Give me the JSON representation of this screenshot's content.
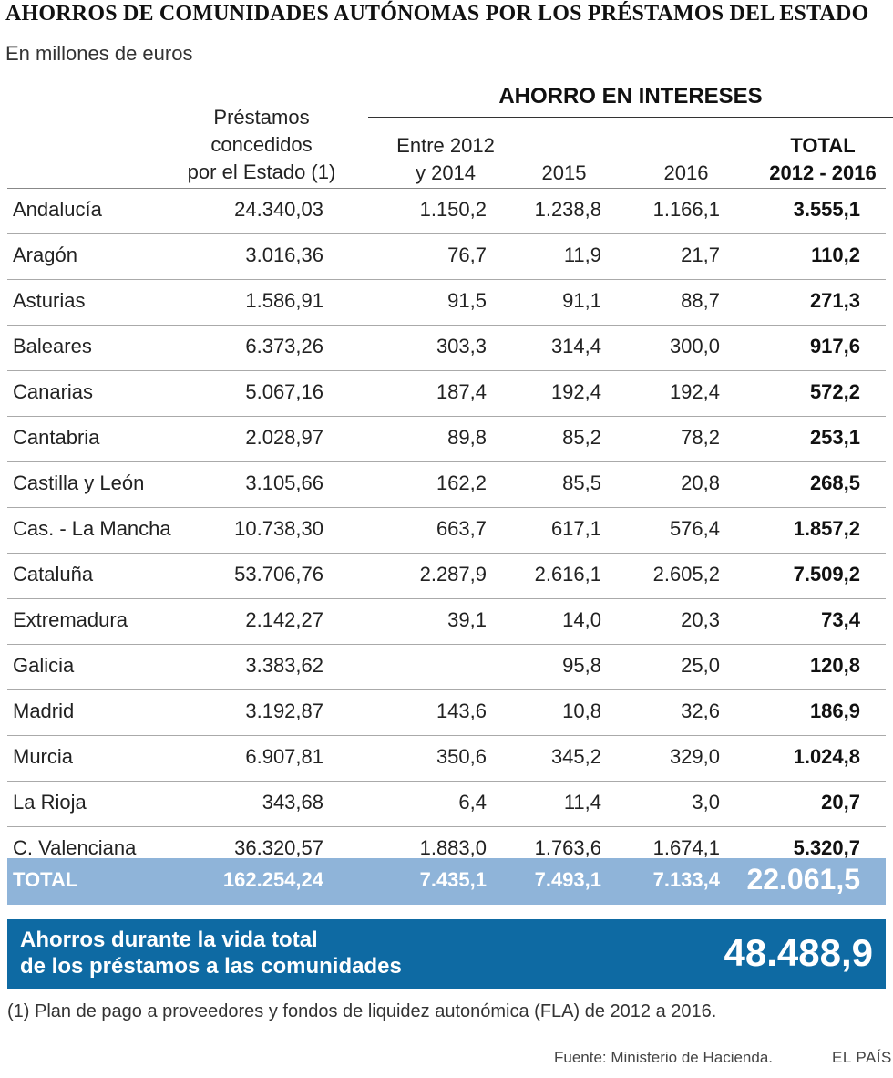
{
  "title": "AHORROS DE COMUNIDADES AUTÓNOMAS POR LOS PRÉSTAMOS DEL ESTADO",
  "subtitle": "En millones de euros",
  "header": {
    "group": "AHORRO EN INTERESES",
    "prestamos": [
      "Préstamos",
      "concedidos",
      "por el Estado (1)"
    ],
    "period": [
      "Entre 2012",
      "y 2014"
    ],
    "y2015": "2015",
    "y2016": "2016",
    "total": [
      "TOTAL",
      "2012 - 2016"
    ]
  },
  "chart_data": {
    "type": "table",
    "columns": [
      "Préstamos concedidos por el Estado (1)",
      "Entre 2012 y 2014",
      "2015",
      "2016",
      "TOTAL 2012 - 2016"
    ],
    "rows": [
      {
        "name": "Andalucía",
        "prestamos": "24.340,03",
        "p2012_2014": "1.150,2",
        "y2015": "1.238,8",
        "y2016": "1.166,1",
        "total": "3.555,1"
      },
      {
        "name": "Aragón",
        "prestamos": "3.016,36",
        "p2012_2014": "76,7",
        "y2015": "11,9",
        "y2016": "21,7",
        "total": "110,2"
      },
      {
        "name": "Asturias",
        "prestamos": "1.586,91",
        "p2012_2014": "91,5",
        "y2015": "91,1",
        "y2016": "88,7",
        "total": "271,3"
      },
      {
        "name": "Baleares",
        "prestamos": "6.373,26",
        "p2012_2014": "303,3",
        "y2015": "314,4",
        "y2016": "300,0",
        "total": "917,6"
      },
      {
        "name": "Canarias",
        "prestamos": "5.067,16",
        "p2012_2014": "187,4",
        "y2015": "192,4",
        "y2016": "192,4",
        "total": "572,2"
      },
      {
        "name": "Cantabria",
        "prestamos": "2.028,97",
        "p2012_2014": "89,8",
        "y2015": "85,2",
        "y2016": "78,2",
        "total": "253,1"
      },
      {
        "name": "Castilla y León",
        "prestamos": "3.105,66",
        "p2012_2014": "162,2",
        "y2015": "85,5",
        "y2016": "20,8",
        "total": "268,5"
      },
      {
        "name": "Cas. - La Mancha",
        "prestamos": "10.738,30",
        "p2012_2014": "663,7",
        "y2015": "617,1",
        "y2016": "576,4",
        "total": "1.857,2"
      },
      {
        "name": "Cataluña",
        "prestamos": "53.706,76",
        "p2012_2014": "2.287,9",
        "y2015": "2.616,1",
        "y2016": "2.605,2",
        "total": "7.509,2"
      },
      {
        "name": "Extremadura",
        "prestamos": "2.142,27",
        "p2012_2014": "39,1",
        "y2015": "14,0",
        "y2016": "20,3",
        "total": "73,4"
      },
      {
        "name": "Galicia",
        "prestamos": "3.383,62",
        "p2012_2014": "",
        "y2015": "95,8",
        "y2016": "25,0",
        "total": "120,8"
      },
      {
        "name": "Madrid",
        "prestamos": "3.192,87",
        "p2012_2014": "143,6",
        "y2015": "10,8",
        "y2016": "32,6",
        "total": "186,9"
      },
      {
        "name": "Murcia",
        "prestamos": "6.907,81",
        "p2012_2014": "350,6",
        "y2015": "345,2",
        "y2016": "329,0",
        "total": "1.024,8"
      },
      {
        "name": "La Rioja",
        "prestamos": "343,68",
        "p2012_2014": "6,4",
        "y2015": "11,4",
        "y2016": "3,0",
        "total": "20,7"
      },
      {
        "name": "C. Valenciana",
        "prestamos": "36.320,57",
        "p2012_2014": "1.883,0",
        "y2015": "1.763,6",
        "y2016": "1.674,1",
        "total": "5.320,7"
      }
    ],
    "total_row": {
      "name": "TOTAL",
      "prestamos": "162.254,24",
      "p2012_2014": "7.435,1",
      "y2015": "7.493,1",
      "y2016": "7.133,4",
      "total": "22.061,5"
    }
  },
  "lifetime": {
    "label_line1": "Ahorros durante la vida total",
    "label_line2": "de los préstamos a las comunidades",
    "value": "48.488,9"
  },
  "footnote": "(1) Plan de pago a proveedores y fondos de liquidez autonómica (FLA) de 2012 a 2016.",
  "source": "Fuente: Ministerio de Hacienda.",
  "brand": "EL PAÍS",
  "colors": {
    "total_row_bg": "#8fb4d9",
    "lifetime_bg": "#0e6aa3"
  }
}
